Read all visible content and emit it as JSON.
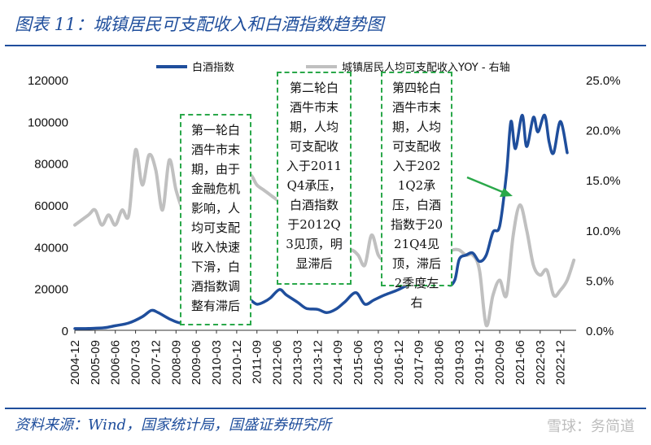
{
  "title": "图表 11：城镇居民可支配收入和白酒指数趋势图",
  "source": "资料来源：Wind，国家统计局，国盛证券研究所",
  "watermark": "雪球：务简道",
  "annotations": [
    "第一轮白酒牛市末期，由于金融危机影响，人均可支配收入快速下滑，白酒指数调整有滞后",
    "第二轮白酒牛市末期，人均可支配收入于2011Q4承压，白酒指数于2012Q3见顶，明显滞后",
    "第四轮白酒牛市末期，人均可支配收入于2021Q2承压，白酒指数于2021Q4见顶，滞后2季度左右"
  ],
  "colors": {
    "title": "#1f4e9c",
    "series_liquor": "#1f4e9c",
    "series_income": "#c0c0c0",
    "annotation_border": "#2aa84a",
    "arrow": "#2aa84a"
  },
  "chart_data": {
    "type": "line",
    "legend_position": "top",
    "grid": false,
    "x_tick_labels": [
      "2004-12",
      "2005-09",
      "2006-06",
      "2007-03",
      "2007-12",
      "2008-09",
      "2009-06",
      "2010-03",
      "2010-12",
      "2011-09",
      "2012-06",
      "2013-03",
      "2013-12",
      "2014-09",
      "2015-06",
      "2016-03",
      "2016-12",
      "2017-09",
      "2018-06",
      "2019-03",
      "2019-12",
      "2020-09",
      "2021-06",
      "2022-03",
      "2022-12"
    ],
    "y_left": {
      "min": 0,
      "max": 120000,
      "ticks": [
        0,
        20000,
        40000,
        60000,
        80000,
        100000,
        120000
      ],
      "tick_labels": [
        "0",
        "20000",
        "40000",
        "60000",
        "80000",
        "100000",
        "120000"
      ]
    },
    "y_right": {
      "min": 0,
      "max": 25,
      "ticks": [
        0,
        5,
        10,
        15,
        20,
        25
      ],
      "tick_labels": [
        "0.0%",
        "5.0%",
        "10.0%",
        "15.0%",
        "20.0%",
        "25.0%"
      ]
    },
    "series": [
      {
        "name": "白酒指数",
        "axis": "left",
        "points": [
          [
            "2004-12",
            800
          ],
          [
            "2005-06",
            900
          ],
          [
            "2006-01",
            1200
          ],
          [
            "2006-06",
            2200
          ],
          [
            "2006-12",
            3500
          ],
          [
            "2007-06",
            6500
          ],
          [
            "2007-10",
            9500
          ],
          [
            "2008-01",
            8500
          ],
          [
            "2008-06",
            5500
          ],
          [
            "2008-11",
            3500
          ],
          [
            "2009-03",
            5000
          ],
          [
            "2009-08",
            8000
          ],
          [
            "2009-12",
            10500
          ],
          [
            "2010-03",
            11500
          ],
          [
            "2010-06",
            10000
          ],
          [
            "2010-09",
            14000
          ],
          [
            "2010-12",
            15500
          ],
          [
            "2011-03",
            15000
          ],
          [
            "2011-06",
            14500
          ],
          [
            "2011-09",
            12500
          ],
          [
            "2011-12",
            13500
          ],
          [
            "2012-03",
            15500
          ],
          [
            "2012-07",
            19500
          ],
          [
            "2012-10",
            17000
          ],
          [
            "2013-03",
            13500
          ],
          [
            "2013-07",
            10500
          ],
          [
            "2013-12",
            10000
          ],
          [
            "2014-04",
            8500
          ],
          [
            "2014-08",
            10000
          ],
          [
            "2014-12",
            13500
          ],
          [
            "2015-05",
            18000
          ],
          [
            "2015-09",
            12500
          ],
          [
            "2016-01",
            14500
          ],
          [
            "2016-06",
            17000
          ],
          [
            "2016-12",
            19500
          ],
          [
            "2017-06",
            23000
          ],
          [
            "2017-12",
            27000
          ],
          [
            "2018-02",
            24000
          ],
          [
            "2018-06",
            31000
          ],
          [
            "2018-10",
            22000
          ],
          [
            "2019-01",
            24000
          ],
          [
            "2019-03",
            34000
          ],
          [
            "2019-06",
            36000
          ],
          [
            "2019-09",
            37000
          ],
          [
            "2019-12",
            33000
          ],
          [
            "2020-03",
            36000
          ],
          [
            "2020-06",
            47000
          ],
          [
            "2020-09",
            50000
          ],
          [
            "2020-12",
            75000
          ],
          [
            "2021-02",
            100000
          ],
          [
            "2021-04",
            87000
          ],
          [
            "2021-07",
            103000
          ],
          [
            "2021-09",
            88000
          ],
          [
            "2021-12",
            102000
          ],
          [
            "2022-02",
            95000
          ],
          [
            "2022-05",
            103000
          ],
          [
            "2022-07",
            90000
          ],
          [
            "2022-09",
            85000
          ],
          [
            "2022-12",
            100000
          ],
          [
            "2023-03",
            85000
          ]
        ]
      },
      {
        "name": "城镇居民人均可支配收入YOY - 右轴",
        "axis": "right",
        "points": [
          [
            "2004-12",
            10.5
          ],
          [
            "2005-06",
            11.5
          ],
          [
            "2005-09",
            12.0
          ],
          [
            "2005-12",
            10.5
          ],
          [
            "2006-03",
            11.5
          ],
          [
            "2006-06",
            10.5
          ],
          [
            "2006-09",
            12.0
          ],
          [
            "2006-12",
            11.5
          ],
          [
            "2007-03",
            18.0
          ],
          [
            "2007-06",
            14.5
          ],
          [
            "2007-09",
            17.5
          ],
          [
            "2007-12",
            16.0
          ],
          [
            "2008-03",
            12.0
          ],
          [
            "2008-06",
            17.0
          ],
          [
            "2008-09",
            14.0
          ],
          [
            "2008-12",
            12.0
          ],
          [
            "2009-03",
            11.0
          ],
          [
            "2009-06",
            10.0
          ],
          [
            "2009-09",
            10.0
          ],
          [
            "2009-12",
            9.5
          ],
          [
            "2010-03",
            9.5
          ],
          [
            "2010-06",
            12.0
          ],
          [
            "2010-09",
            13.5
          ],
          [
            "2010-12",
            13.5
          ],
          [
            "2011-03",
            14.5
          ],
          [
            "2011-06",
            15.5
          ],
          [
            "2011-09",
            14.5
          ],
          [
            "2011-12",
            14.0
          ],
          [
            "2012-03",
            13.5
          ],
          [
            "2012-06",
            13.0
          ],
          [
            "2012-09",
            12.5
          ],
          [
            "2012-12",
            11.5
          ],
          [
            "2013-03",
            9.5
          ],
          [
            "2013-06",
            9.5
          ],
          [
            "2013-09",
            9.0
          ],
          [
            "2013-12",
            9.5
          ],
          [
            "2014-03",
            9.5
          ],
          [
            "2014-06",
            9.0
          ],
          [
            "2014-09",
            8.5
          ],
          [
            "2014-12",
            7.5
          ],
          [
            "2015-03",
            8.0
          ],
          [
            "2015-06",
            7.5
          ],
          [
            "2015-09",
            6.5
          ],
          [
            "2015-12",
            9.5
          ],
          [
            "2016-03",
            7.5
          ],
          [
            "2016-06",
            7.0
          ],
          [
            "2016-09",
            7.5
          ],
          [
            "2016-12",
            8.5
          ],
          [
            "2017-03",
            8.0
          ],
          [
            "2017-06",
            8.0
          ],
          [
            "2017-09",
            8.5
          ],
          [
            "2017-12",
            8.0
          ],
          [
            "2018-03",
            8.0
          ],
          [
            "2018-06",
            7.5
          ],
          [
            "2018-09",
            7.5
          ],
          [
            "2018-12",
            8.0
          ],
          [
            "2019-03",
            8.0
          ],
          [
            "2019-06",
            7.5
          ],
          [
            "2019-09",
            7.5
          ],
          [
            "2019-12",
            6.0
          ],
          [
            "2020-03",
            0.5
          ],
          [
            "2020-06",
            3.5
          ],
          [
            "2020-09",
            5.0
          ],
          [
            "2020-12",
            3.5
          ],
          [
            "2021-03",
            9.5
          ],
          [
            "2021-06",
            12.5
          ],
          [
            "2021-09",
            10.0
          ],
          [
            "2021-12",
            6.5
          ],
          [
            "2022-03",
            5.5
          ],
          [
            "2022-06",
            6.0
          ],
          [
            "2022-09",
            3.5
          ],
          [
            "2022-12",
            4.0
          ],
          [
            "2023-03",
            5.0
          ],
          [
            "2023-06",
            7.0
          ]
        ]
      }
    ]
  }
}
